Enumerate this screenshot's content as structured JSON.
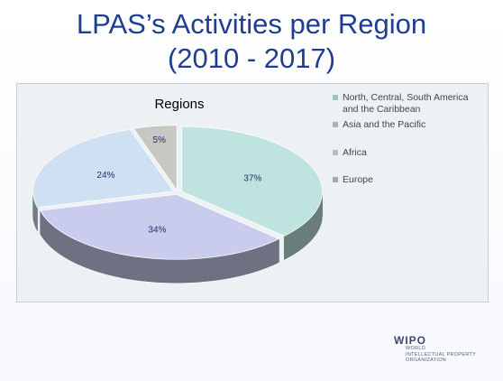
{
  "slide": {
    "title_line1": "LPAS’s Activities per Region",
    "title_line2": "(2010 - 2017)"
  },
  "chart_data": {
    "type": "pie",
    "three_d": true,
    "title": "Regions",
    "labels": [
      "North, Central, South America and the Caribbean",
      "Asia and the Pacific",
      "Africa",
      "Europe"
    ],
    "values": [
      37,
      34,
      24,
      5
    ],
    "data_labels": [
      "37%",
      "34%",
      "24%",
      "5%"
    ],
    "colors": [
      "#bfe3df",
      "#c9cced",
      "#cfe0f3",
      "#c7c7c3"
    ],
    "legend_position": "right"
  },
  "logo": {
    "name": "WIPO",
    "line1": "WORLD",
    "line2": "INTELLECTUAL PROPERTY",
    "line3": "ORGANIZATION"
  }
}
